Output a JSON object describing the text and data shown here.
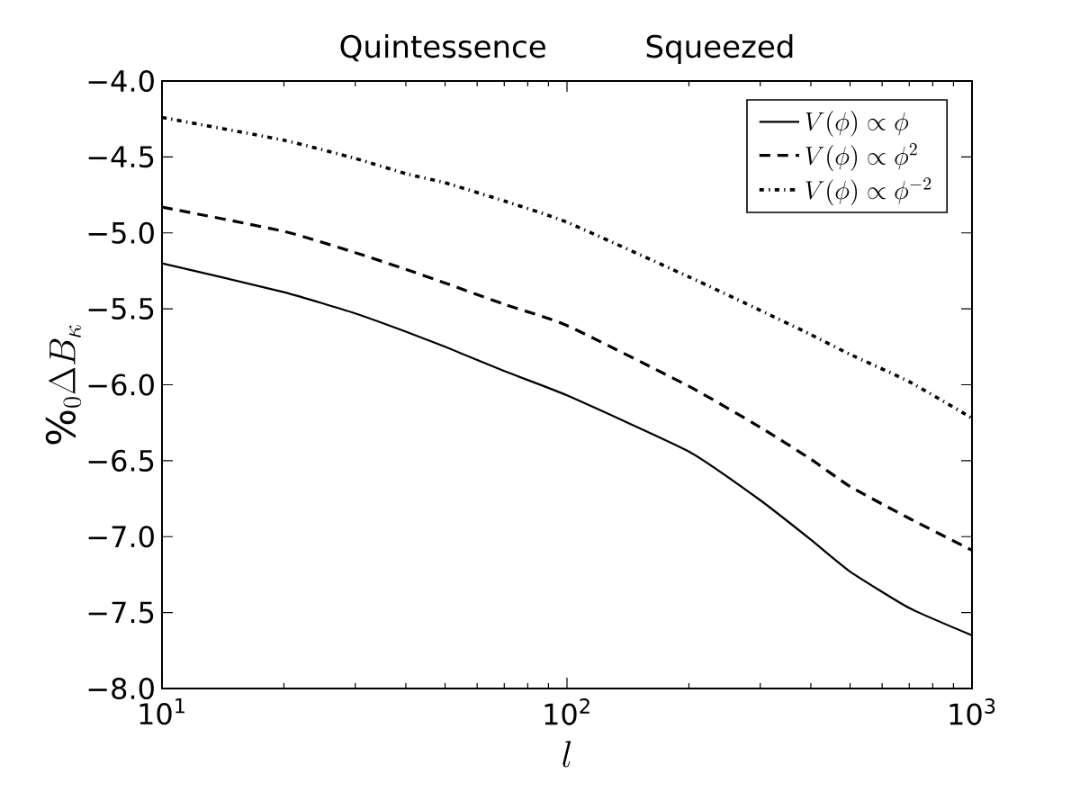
{
  "chart_data": {
    "type": "line",
    "title": "Quintessence",
    "subtitle": "Squeezed",
    "xlabel": "l",
    "ylabel": "\\%_0\\Delta B_\\kappa",
    "log": "x",
    "xlim": [
      10,
      1000
    ],
    "ylim": [
      -8.0,
      -4.0
    ],
    "xticks": [
      {
        "value": 10,
        "label": "10$^{1}$"
      },
      {
        "value": 100,
        "label": "10$^{2}$"
      },
      {
        "value": 1000,
        "label": "10$^{3}$"
      }
    ],
    "yticks": [
      {
        "value": -8.0,
        "label": "−8.0"
      },
      {
        "value": -7.5,
        "label": "−7.5"
      },
      {
        "value": -7.0,
        "label": "−7.0"
      },
      {
        "value": -6.5,
        "label": "−6.5"
      },
      {
        "value": -6.0,
        "label": "−6.0"
      },
      {
        "value": -5.5,
        "label": "−5.5"
      },
      {
        "value": -5.0,
        "label": "−5.0"
      },
      {
        "value": -4.5,
        "label": "−4.5"
      },
      {
        "value": -4.0,
        "label": "−4.0"
      }
    ],
    "x": [
      10,
      20,
      30,
      40,
      50,
      70,
      100,
      200,
      300,
      400,
      500,
      700,
      1000
    ],
    "legend": "top right",
    "grid": false,
    "marker": "none",
    "series": [
      {
        "name": "V(\\phi)\\propto\\phi",
        "color": "#000000",
        "line_style": "solid",
        "values": [
          -5.2,
          -5.39,
          -5.53,
          -5.65,
          -5.75,
          -5.91,
          -6.07,
          -6.44,
          -6.76,
          -7.02,
          -7.23,
          -7.47,
          -7.65
        ]
      },
      {
        "name": "V(\\phi)\\propto\\phi^2",
        "color": "#000000",
        "line_style": "dashed",
        "values": [
          -4.83,
          -4.99,
          -5.13,
          -5.24,
          -5.33,
          -5.47,
          -5.61,
          -6.01,
          -6.28,
          -6.49,
          -6.67,
          -6.88,
          -7.09
        ]
      },
      {
        "name": "V(\\phi)\\propto\\phi^{-2}",
        "color": "#000000",
        "line_style": "dotted",
        "values": [
          -4.24,
          -4.39,
          -4.51,
          -4.61,
          -4.67,
          -4.79,
          -4.93,
          -5.29,
          -5.51,
          -5.67,
          -5.8,
          -5.98,
          -6.22
        ]
      }
    ]
  }
}
